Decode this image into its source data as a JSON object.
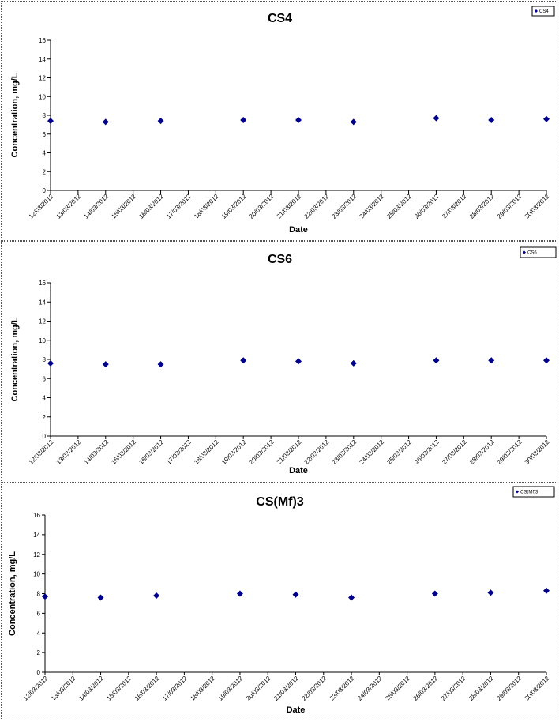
{
  "chart_data": [
    {
      "type": "scatter",
      "title": "CS4",
      "xlabel": "Date",
      "ylabel": "Concentration, mg/L",
      "categories": [
        "12/03/2012",
        "13/03/2012",
        "14/03/2012",
        "15/03/2012",
        "16/03/2012",
        "17/03/2012",
        "18/03/2012",
        "19/03/2012",
        "20/03/2012",
        "21/03/2012",
        "22/03/2012",
        "23/03/2012",
        "24/03/2012",
        "25/03/2012",
        "26/03/2012",
        "27/03/2012",
        "28/03/2012",
        "29/03/2012",
        "30/03/2012"
      ],
      "ylim": [
        0,
        16
      ],
      "yticks": [
        0,
        2,
        4,
        6,
        8,
        10,
        12,
        14,
        16
      ],
      "grid": false,
      "legend_position": "top-right",
      "series": [
        {
          "name": "CS4",
          "color": "#00008B",
          "marker": "diamond",
          "points": [
            {
              "x": "12/03/2012",
              "y": 7.4
            },
            {
              "x": "14/03/2012",
              "y": 7.3
            },
            {
              "x": "16/03/2012",
              "y": 7.4
            },
            {
              "x": "19/03/2012",
              "y": 7.5
            },
            {
              "x": "21/03/2012",
              "y": 7.5
            },
            {
              "x": "23/03/2012",
              "y": 7.3
            },
            {
              "x": "26/03/2012",
              "y": 7.7
            },
            {
              "x": "28/03/2012",
              "y": 7.5
            },
            {
              "x": "30/03/2012",
              "y": 7.6
            }
          ]
        }
      ]
    },
    {
      "type": "scatter",
      "title": "CS6",
      "xlabel": "Date",
      "ylabel": "Concentration, mg/L",
      "categories": [
        "12/03/2012",
        "13/03/2012",
        "14/03/2012",
        "15/03/2012",
        "16/03/2012",
        "17/03/2012",
        "18/03/2012",
        "19/03/2012",
        "20/03/2012",
        "21/03/2012",
        "22/03/2012",
        "23/03/2012",
        "24/03/2012",
        "25/03/2012",
        "26/03/2012",
        "27/03/2012",
        "28/03/2012",
        "29/03/2012",
        "30/03/2012"
      ],
      "ylim": [
        0,
        16
      ],
      "yticks": [
        0,
        2,
        4,
        6,
        8,
        10,
        12,
        14,
        16
      ],
      "grid": false,
      "legend_position": "top-right",
      "series": [
        {
          "name": "CS6",
          "color": "#00008B",
          "marker": "diamond",
          "points": [
            {
              "x": "12/03/2012",
              "y": 7.6
            },
            {
              "x": "14/03/2012",
              "y": 7.5
            },
            {
              "x": "16/03/2012",
              "y": 7.5
            },
            {
              "x": "19/03/2012",
              "y": 7.9
            },
            {
              "x": "21/03/2012",
              "y": 7.8
            },
            {
              "x": "23/03/2012",
              "y": 7.6
            },
            {
              "x": "26/03/2012",
              "y": 7.9
            },
            {
              "x": "28/03/2012",
              "y": 7.9
            },
            {
              "x": "30/03/2012",
              "y": 7.9
            }
          ]
        }
      ]
    },
    {
      "type": "scatter",
      "title": "CS(Mf)3",
      "xlabel": "Date",
      "ylabel": "Concentration, mg/L",
      "categories": [
        "12/03/2012",
        "13/03/2012",
        "14/03/2012",
        "15/03/2012",
        "16/03/2012",
        "17/03/2012",
        "18/03/2012",
        "19/03/2012",
        "20/03/2012",
        "21/03/2012",
        "22/03/2012",
        "23/03/2012",
        "24/03/2012",
        "25/03/2012",
        "26/03/2012",
        "27/03/2012",
        "28/03/2012",
        "29/03/2012",
        "30/03/2012"
      ],
      "ylim": [
        0,
        16
      ],
      "yticks": [
        0,
        2,
        4,
        6,
        8,
        10,
        12,
        14,
        16
      ],
      "grid": false,
      "legend_position": "top-right",
      "series": [
        {
          "name": "CS(Mf)3",
          "color": "#00008B",
          "marker": "diamond",
          "points": [
            {
              "x": "12/03/2012",
              "y": 7.7
            },
            {
              "x": "14/03/2012",
              "y": 7.6
            },
            {
              "x": "16/03/2012",
              "y": 7.8
            },
            {
              "x": "19/03/2012",
              "y": 8.0
            },
            {
              "x": "21/03/2012",
              "y": 7.9
            },
            {
              "x": "23/03/2012",
              "y": 7.6
            },
            {
              "x": "26/03/2012",
              "y": 8.0
            },
            {
              "x": "28/03/2012",
              "y": 8.1
            },
            {
              "x": "30/03/2012",
              "y": 8.3
            }
          ]
        }
      ]
    }
  ]
}
